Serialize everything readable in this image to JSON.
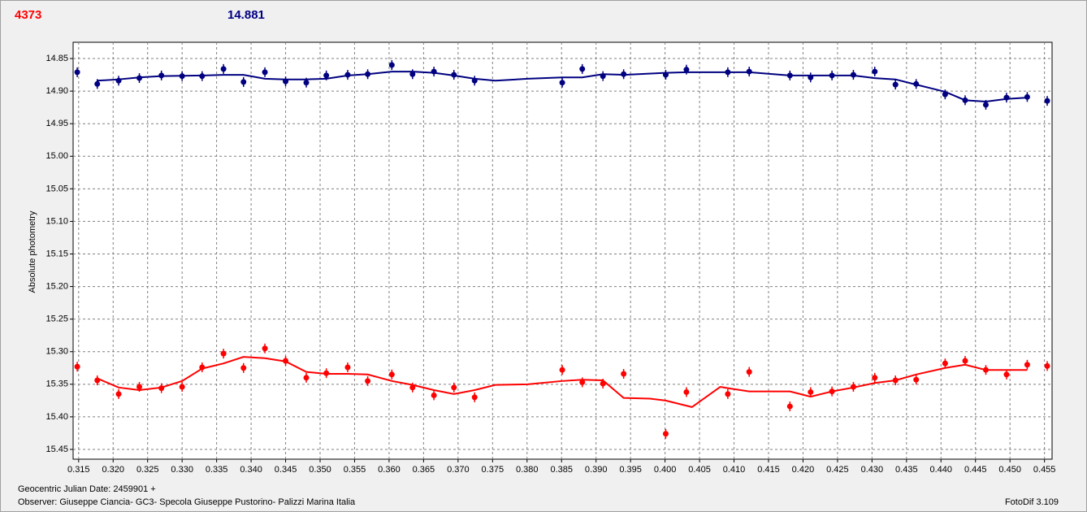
{
  "chart_data": {
    "type": "scatter",
    "title": "4373",
    "subtitle": "14.881",
    "ylabel": "Absolute photometry",
    "xlabel": "Geocentric Julian Date: 2459901 +",
    "note": "Observer: Giuseppe Ciancia- GC3- Specola Giuseppe Pustorino- Palizzi Marina Italia",
    "credit": "FotoDif 3.109",
    "grid": true,
    "y_inverted": true,
    "xlim": [
      0.3142,
      0.4561
    ],
    "ylim": [
      14.825,
      15.465
    ],
    "xticks": [
      0.315,
      {
        "value": 0.32,
        "label": "0.320"
      },
      0.325,
      {
        "value": 0.33,
        "label": "0.330"
      },
      0.335,
      {
        "value": 0.34,
        "label": "0.340"
      },
      0.345,
      {
        "value": 0.35,
        "label": "0.350"
      },
      0.355,
      {
        "value": 0.36,
        "label": "0.360"
      },
      0.365,
      {
        "value": 0.37,
        "label": "0.370"
      },
      0.375,
      {
        "value": 0.38,
        "label": "0.380"
      },
      0.385,
      {
        "value": 0.39,
        "label": "0.390"
      },
      0.395,
      {
        "value": 0.4,
        "label": "0.400"
      },
      0.405,
      {
        "value": 0.41,
        "label": "0.410"
      },
      0.415,
      {
        "value": 0.42,
        "label": "0.420"
      },
      0.425,
      {
        "value": 0.43,
        "label": "0.430"
      },
      0.435,
      {
        "value": 0.44,
        "label": "0.440"
      },
      0.445,
      {
        "value": 0.45,
        "label": "0.450"
      },
      0.455
    ],
    "yticks": [
      14.85,
      {
        "value": 14.9,
        "label": "14.90"
      },
      14.95,
      {
        "value": 15,
        "label": "15.00"
      },
      15.05,
      {
        "value": 15.1,
        "label": "15.10"
      },
      15.15,
      {
        "value": 15.2,
        "label": "15.20"
      },
      15.25,
      {
        "value": 15.3,
        "label": "15.30"
      },
      15.35,
      {
        "value": 15.4,
        "label": "15.40"
      },
      15.45
    ],
    "series": [
      {
        "mode": "points",
        "color": "#000080",
        "x": [
          0.3148,
          0.3177,
          0.3208,
          0.3238,
          0.327,
          0.33,
          0.3329,
          0.336,
          0.3389,
          0.342,
          0.345,
          0.348,
          0.3509,
          0.354,
          0.3569,
          0.3604,
          0.3634,
          0.3665,
          0.3694,
          0.3724,
          0.3851,
          0.388,
          0.391,
          0.394,
          0.4001,
          0.4031,
          0.4091,
          0.4122,
          0.4181,
          0.4211,
          0.4242,
          0.4273,
          0.4304,
          0.4334,
          0.4364,
          0.4406,
          0.4435,
          0.4465,
          0.4495,
          0.4525,
          0.4554
        ],
        "values": [
          14.871,
          14.889,
          14.884,
          14.88,
          14.876,
          14.877,
          14.877,
          14.866,
          14.886,
          14.871,
          14.885,
          14.887,
          14.876,
          14.875,
          14.874,
          14.86,
          14.874,
          14.87,
          14.875,
          14.884,
          14.887,
          14.866,
          14.877,
          14.874,
          14.875,
          14.867,
          14.871,
          14.87,
          14.876,
          14.879,
          14.876,
          14.875,
          14.87,
          14.89,
          14.889,
          14.905,
          14.914,
          14.921,
          14.91,
          14.909,
          14.915
        ]
      },
      {
        "mode": "points",
        "color": "#ff0000",
        "x": [
          0.3148,
          0.3177,
          0.3208,
          0.3238,
          0.327,
          0.33,
          0.3329,
          0.336,
          0.3389,
          0.342,
          0.345,
          0.348,
          0.3509,
          0.354,
          0.3569,
          0.3604,
          0.3634,
          0.3665,
          0.3694,
          0.3724,
          0.3851,
          0.388,
          0.391,
          0.394,
          0.4001,
          0.4031,
          0.4091,
          0.4122,
          0.4181,
          0.4211,
          0.4242,
          0.4273,
          0.4304,
          0.4334,
          0.4364,
          0.4406,
          0.4435,
          0.4465,
          0.4495,
          0.4525,
          0.4554
        ],
        "values": [
          15.323,
          15.344,
          15.365,
          15.354,
          15.356,
          15.354,
          15.324,
          15.303,
          15.325,
          15.295,
          15.314,
          15.34,
          15.333,
          15.324,
          15.345,
          15.335,
          15.355,
          15.367,
          15.355,
          15.37,
          15.328,
          15.347,
          15.349,
          15.334,
          15.426,
          15.362,
          15.365,
          15.331,
          15.384,
          15.362,
          15.361,
          15.354,
          15.34,
          15.344,
          15.343,
          15.318,
          15.314,
          15.328,
          15.335,
          15.32,
          15.322
        ]
      },
      {
        "mode": "line",
        "color": "#000080",
        "x": [
          0.3177,
          0.3208,
          0.3238,
          0.327,
          0.3329,
          0.336,
          0.3389,
          0.342,
          0.345,
          0.348,
          0.3509,
          0.354,
          0.3569,
          0.3604,
          0.3634,
          0.3665,
          0.3694,
          0.3724,
          0.3754,
          0.3801,
          0.3851,
          0.388,
          0.391,
          0.394,
          0.4001,
          0.4031,
          0.4091,
          0.4122,
          0.4181,
          0.4242,
          0.4273,
          0.4304,
          0.4334,
          0.4364,
          0.4406,
          0.4435,
          0.4465,
          0.4495,
          0.4525
        ],
        "values": [
          14.884,
          14.882,
          14.879,
          14.877,
          14.876,
          14.875,
          14.875,
          14.881,
          14.882,
          14.882,
          14.881,
          14.876,
          14.874,
          14.87,
          14.87,
          14.872,
          14.876,
          14.881,
          14.884,
          14.881,
          14.879,
          14.879,
          14.874,
          14.875,
          14.872,
          14.871,
          14.871,
          14.871,
          14.876,
          14.876,
          14.876,
          14.88,
          14.882,
          14.89,
          14.901,
          14.914,
          14.916,
          14.912,
          14.91
        ]
      },
      {
        "mode": "line",
        "color": "#ff0000",
        "x": [
          0.3177,
          0.3208,
          0.3238,
          0.327,
          0.33,
          0.3329,
          0.336,
          0.3389,
          0.342,
          0.345,
          0.348,
          0.3509,
          0.354,
          0.3569,
          0.3604,
          0.3634,
          0.3665,
          0.3694,
          0.3724,
          0.3754,
          0.3801,
          0.3851,
          0.388,
          0.391,
          0.394,
          0.3978,
          0.4001,
          0.4039,
          0.408,
          0.4091,
          0.4122,
          0.4181,
          0.4211,
          0.4242,
          0.4273,
          0.4304,
          0.4334,
          0.4364,
          0.4406,
          0.4435,
          0.4465,
          0.4495,
          0.4525
        ],
        "values": [
          15.341,
          15.355,
          15.359,
          15.355,
          15.345,
          15.326,
          15.318,
          15.308,
          15.31,
          15.315,
          15.331,
          15.334,
          15.334,
          15.335,
          15.345,
          15.351,
          15.359,
          15.365,
          15.359,
          15.351,
          15.35,
          15.345,
          15.343,
          15.344,
          15.371,
          15.372,
          15.375,
          15.385,
          15.354,
          15.356,
          15.361,
          15.361,
          15.369,
          15.361,
          15.355,
          15.348,
          15.344,
          15.335,
          15.325,
          15.32,
          15.328,
          15.328,
          15.328
        ]
      }
    ]
  }
}
